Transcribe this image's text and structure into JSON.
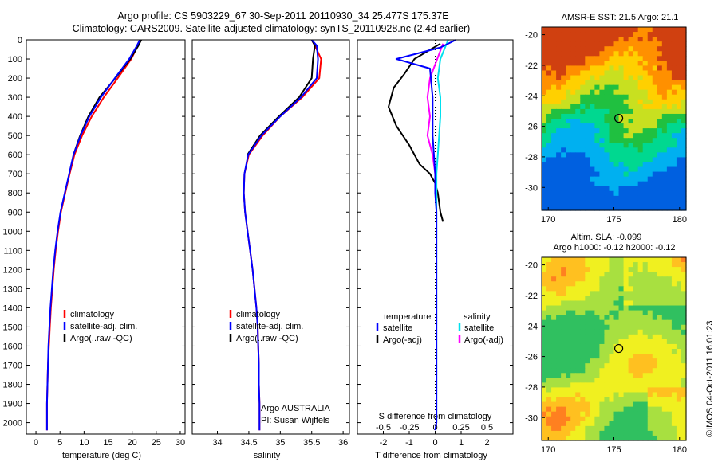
{
  "title": {
    "line1": "Argo profile: CS 5903229_67 30-Sep-2011 20110930_34 25.477S 175.37E",
    "line2": "Climatology: CARS2009. Satellite-adjusted climatology: synTS_20110928.nc (2.4d earlier)"
  },
  "depth_ticks": [
    0,
    100,
    200,
    300,
    400,
    500,
    600,
    700,
    800,
    900,
    1000,
    1100,
    1200,
    1300,
    1400,
    1500,
    1600,
    1700,
    1800,
    1900,
    2000
  ],
  "colors": {
    "climatology": "#ff0000",
    "satellite": "#0000ff",
    "argo": "#000000",
    "sat_salinity": "#00e0ee",
    "argo_salinity": "#ff00ff"
  },
  "chart_data": [
    {
      "type": "line",
      "xlabel": "temperature (deg C)",
      "ylabel": "",
      "xlim": [
        -2,
        31
      ],
      "ylim": [
        2060,
        0
      ],
      "xticks": [
        0,
        5,
        10,
        15,
        20,
        25,
        30
      ],
      "legend": [
        "climatology",
        "satellite-adj. clim.",
        "Argo(..raw -QC)"
      ],
      "legend_position": "lower-center",
      "series": [
        {
          "name": "climatology",
          "color": "#ff0000",
          "x": [
            21.8,
            21.2,
            19.8,
            17.0,
            14.1,
            11.6,
            9.6,
            8.0,
            7.0,
            6.1,
            5.2,
            4.6,
            4.1,
            3.7,
            3.4,
            3.1,
            2.9,
            2.7,
            2.5,
            2.4,
            2.3,
            2.3
          ],
          "y": [
            0,
            30,
            100,
            200,
            300,
            400,
            500,
            600,
            700,
            800,
            900,
            1000,
            1100,
            1200,
            1300,
            1400,
            1500,
            1600,
            1700,
            1800,
            1900,
            2040
          ]
        },
        {
          "name": "satellite-adj. clim.",
          "color": "#0000ff",
          "x": [
            21.6,
            21.0,
            19.4,
            16.4,
            13.5,
            11.1,
            9.3,
            7.8,
            6.9,
            6.0,
            5.1,
            4.5,
            4.0,
            3.6,
            3.3,
            3.0,
            2.8,
            2.6,
            2.5,
            2.4,
            2.3,
            2.3
          ],
          "y": [
            0,
            30,
            100,
            200,
            300,
            400,
            500,
            600,
            700,
            800,
            900,
            1000,
            1100,
            1200,
            1300,
            1400,
            1500,
            1600,
            1700,
            1800,
            1900,
            2040
          ]
        },
        {
          "name": "Argo(..raw -QC)",
          "color": "#000000",
          "x": [
            21.9,
            21.3,
            19.6,
            16.5,
            13.2,
            10.9,
            9.2,
            7.8
          ],
          "y": [
            0,
            30,
            100,
            200,
            300,
            400,
            500,
            600
          ]
        }
      ],
      "annotations": []
    },
    {
      "type": "line",
      "xlabel": "salinity",
      "ylabel": "",
      "xlim": [
        33.6,
        36.1
      ],
      "ylim": [
        2060,
        0
      ],
      "xticks": [
        34,
        34.5,
        35,
        35.5,
        36
      ],
      "xticklabels": [
        "34",
        "34.5",
        "35",
        "35.5",
        "36"
      ],
      "legend": [
        "climatology",
        "satellite-adj. clim.",
        "Argo(..raw -QC)"
      ],
      "legend_position": "lower-center",
      "series": [
        {
          "name": "climatology",
          "color": "#ff0000",
          "x": [
            35.5,
            35.55,
            35.65,
            35.62,
            35.35,
            35.0,
            34.72,
            34.5,
            34.43,
            34.42,
            34.44,
            34.48,
            34.52,
            34.56,
            34.59,
            34.62,
            34.64,
            34.65,
            34.66,
            34.66,
            34.67,
            34.67
          ],
          "y": [
            0,
            30,
            100,
            200,
            300,
            400,
            500,
            600,
            700,
            800,
            900,
            1000,
            1100,
            1200,
            1300,
            1400,
            1500,
            1600,
            1700,
            1800,
            1900,
            2040
          ]
        },
        {
          "name": "satellite-adj. clim.",
          "color": "#0000ff",
          "x": [
            35.5,
            35.58,
            35.6,
            35.58,
            35.33,
            35.0,
            34.7,
            34.49,
            34.43,
            34.42,
            34.44,
            34.48,
            34.52,
            34.56,
            34.59,
            34.62,
            34.64,
            34.65,
            34.66,
            34.66,
            34.67,
            34.67
          ],
          "y": [
            0,
            30,
            100,
            200,
            300,
            400,
            500,
            600,
            700,
            800,
            900,
            1000,
            1100,
            1200,
            1300,
            1400,
            1500,
            1600,
            1700,
            1800,
            1900,
            2040
          ]
        },
        {
          "name": "Argo(..raw -QC)",
          "color": "#000000",
          "x": [
            35.5,
            35.55,
            35.52,
            35.5,
            35.3,
            34.98,
            34.68,
            34.48
          ],
          "y": [
            0,
            30,
            100,
            200,
            300,
            400,
            500,
            600
          ]
        }
      ],
      "annotations": [
        "Argo AUSTRALIA",
        "PI: Susan Wijffels"
      ]
    },
    {
      "type": "line",
      "xlabel": "T difference from climatology",
      "xlabel_top": "S difference from climatology",
      "ylabel": "",
      "xlim": [
        -3,
        3
      ],
      "ylim": [
        2060,
        0
      ],
      "xticks": [
        -2,
        -1,
        0,
        1,
        2
      ],
      "top_xticks": [
        -0.5,
        -0.25,
        0,
        0.25,
        0.5
      ],
      "top_xticklabels": [
        "-0.5",
        "-0.25",
        "0",
        "0.25",
        "0.5"
      ],
      "legend_temperature": {
        "header": "temperature",
        "items": [
          "satellite",
          "Argo(-adj)"
        ]
      },
      "legend_salinity": {
        "header": "salinity",
        "items": [
          "satellite",
          "Argo(-adj)"
        ]
      },
      "series": [
        {
          "name": "temperature satellite",
          "color": "#0000ff",
          "x": [
            0.8,
            0.2,
            -1.5,
            -0.2,
            -0.1,
            -0.1,
            0,
            0,
            0.05,
            0.05,
            0.05,
            0.05,
            0.05,
            0.05,
            0.05,
            0.05,
            0.05,
            0.05,
            0.05,
            0.05,
            0.0
          ],
          "y": [
            0,
            40,
            100,
            150,
            300,
            500,
            700,
            800,
            900,
            1000,
            1100,
            1200,
            1300,
            1400,
            1500,
            1600,
            1700,
            1800,
            1900,
            2000,
            2040
          ]
        },
        {
          "name": "temperature Argo(-adj)",
          "color": "#000000",
          "x": [
            0.2,
            -0.8,
            -1.2,
            -1.6,
            -1.8,
            -1.5,
            -1.0,
            -0.6,
            -0.2,
            0,
            0.1,
            0.2,
            0.3
          ],
          "y": [
            20,
            100,
            180,
            250,
            350,
            450,
            550,
            650,
            700,
            750,
            800,
            900,
            950
          ]
        },
        {
          "name": "salinity satellite",
          "color": "#00e0ee",
          "x": [
            0.5,
            0.2,
            0.1,
            0.2,
            0.2,
            0.15,
            0.1,
            0.05,
            0.05,
            0.05,
            0.05,
            0.05,
            0.05,
            0.05,
            0.05,
            0.05,
            0.05,
            0.05,
            0.05,
            0.05
          ],
          "y": [
            0,
            100,
            200,
            300,
            400,
            500,
            600,
            700,
            800,
            1000,
            1100,
            1200,
            1300,
            1400,
            1500,
            1600,
            1700,
            1800,
            1900,
            2000
          ]
        },
        {
          "name": "salinity Argo(-adj)",
          "color": "#ff00ff",
          "x": [
            0.3,
            -0.2,
            -0.3,
            -0.2,
            -0.3,
            -0.1,
            0
          ],
          "y": [
            20,
            200,
            300,
            400,
            500,
            600,
            700
          ]
        }
      ],
      "annotations": []
    }
  ],
  "maps": [
    {
      "title": "AMSR-E SST: 21.5 Argo: 21.1",
      "subtitle": "",
      "xticks": [
        "170",
        "175",
        "180"
      ],
      "yticks": [
        "-20",
        "-22",
        "-24",
        "-26",
        "-28",
        "-30"
      ],
      "marker": {
        "lon": 175.37,
        "lat": -25.477
      }
    },
    {
      "title": "Altim. SLA: -0.099",
      "subtitle": "Argo h1000: -0.12 h2000: -0.12",
      "xticks": [
        "170",
        "175",
        "180"
      ],
      "yticks": [
        "-20",
        "-22",
        "-24",
        "-26",
        "-28",
        "-30"
      ],
      "marker": {
        "lon": 175.37,
        "lat": -25.477
      }
    }
  ],
  "credit": "©IMOS 04-Oct-2011 16:01:23"
}
